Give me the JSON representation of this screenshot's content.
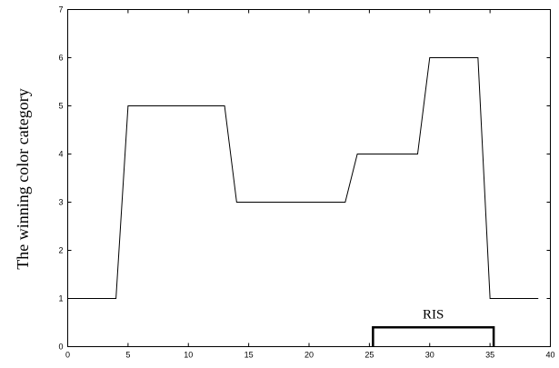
{
  "chart_data": {
    "type": "line",
    "title": "",
    "xlabel": "",
    "ylabel": "The winning color category",
    "xlim": [
      0,
      40
    ],
    "ylim": [
      0,
      7
    ],
    "x_ticks": [
      0,
      5,
      10,
      15,
      20,
      25,
      30,
      35,
      40
    ],
    "y_ticks": [
      0,
      1,
      2,
      3,
      4,
      5,
      6,
      7
    ],
    "grid": false,
    "legend": "none",
    "series": [
      {
        "color": "#000000",
        "x": [
          0,
          4,
          5,
          13,
          14,
          23,
          24,
          29,
          30,
          34,
          35,
          39
        ],
        "y": [
          1,
          1,
          5,
          5,
          3,
          3,
          4,
          4,
          6,
          6,
          1,
          1
        ]
      }
    ],
    "annotations": [
      {
        "type": "bracket",
        "label": "RIS",
        "x_start": 25.3,
        "x_end": 35.3,
        "y": 0.4
      }
    ]
  }
}
